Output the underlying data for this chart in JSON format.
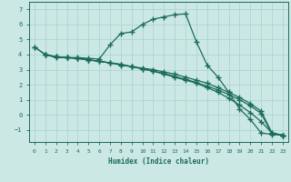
{
  "xlabel": "Humidex (Indice chaleur)",
  "xlim": [
    -0.5,
    23.5
  ],
  "ylim": [
    -1.8,
    7.5
  ],
  "xticks": [
    0,
    1,
    2,
    3,
    4,
    5,
    6,
    7,
    8,
    9,
    10,
    11,
    12,
    13,
    14,
    15,
    16,
    17,
    18,
    19,
    20,
    21,
    22,
    23
  ],
  "yticks": [
    -1,
    0,
    1,
    2,
    3,
    4,
    5,
    6,
    7
  ],
  "background_color": "#cce8e5",
  "grid_color": "#aed4d0",
  "line_color": "#1a6b5a",
  "lines": [
    {
      "x": [
        0,
        1,
        2,
        3,
        4,
        5,
        6,
        7,
        8,
        9,
        10,
        11,
        12,
        13,
        14,
        15,
        16,
        17,
        18,
        19,
        20,
        21,
        22,
        23
      ],
      "y": [
        4.5,
        4.0,
        3.8,
        3.8,
        3.8,
        3.75,
        3.7,
        4.65,
        5.4,
        5.5,
        6.0,
        6.35,
        6.5,
        6.65,
        6.7,
        4.85,
        3.3,
        2.5,
        1.5,
        0.4,
        -0.3,
        -1.2,
        -1.3,
        -1.35
      ]
    },
    {
      "x": [
        1,
        2,
        3,
        4,
        5,
        6,
        7,
        8,
        9,
        10,
        11,
        12,
        13,
        14,
        15,
        16,
        17,
        18,
        19,
        20,
        21,
        22,
        23
      ],
      "y": [
        4.0,
        3.85,
        3.8,
        3.75,
        3.65,
        3.55,
        3.45,
        3.3,
        3.2,
        3.05,
        2.9,
        2.75,
        2.55,
        2.35,
        2.15,
        1.9,
        1.65,
        1.35,
        1.0,
        0.6,
        0.1,
        -1.25,
        -1.35
      ]
    },
    {
      "x": [
        1,
        2,
        3,
        4,
        5,
        6,
        7,
        8,
        9,
        10,
        11,
        12,
        13,
        14,
        15,
        16,
        17,
        18,
        19,
        20,
        21,
        22,
        23
      ],
      "y": [
        4.0,
        3.85,
        3.8,
        3.75,
        3.65,
        3.55,
        3.45,
        3.35,
        3.2,
        3.1,
        3.0,
        2.85,
        2.7,
        2.5,
        2.3,
        2.1,
        1.8,
        1.5,
        1.15,
        0.75,
        0.25,
        -1.2,
        -1.35
      ]
    },
    {
      "x": [
        0,
        1,
        2,
        3,
        4,
        5,
        6,
        7,
        8,
        9,
        10,
        11,
        12,
        13,
        14,
        15,
        16,
        17,
        18,
        19,
        20,
        21,
        22,
        23
      ],
      "y": [
        4.5,
        4.0,
        3.85,
        3.8,
        3.75,
        3.65,
        3.55,
        3.45,
        3.35,
        3.2,
        3.05,
        2.9,
        2.7,
        2.5,
        2.3,
        2.1,
        1.8,
        1.5,
        1.1,
        0.65,
        0.15,
        -0.45,
        -1.2,
        -1.35
      ]
    }
  ]
}
